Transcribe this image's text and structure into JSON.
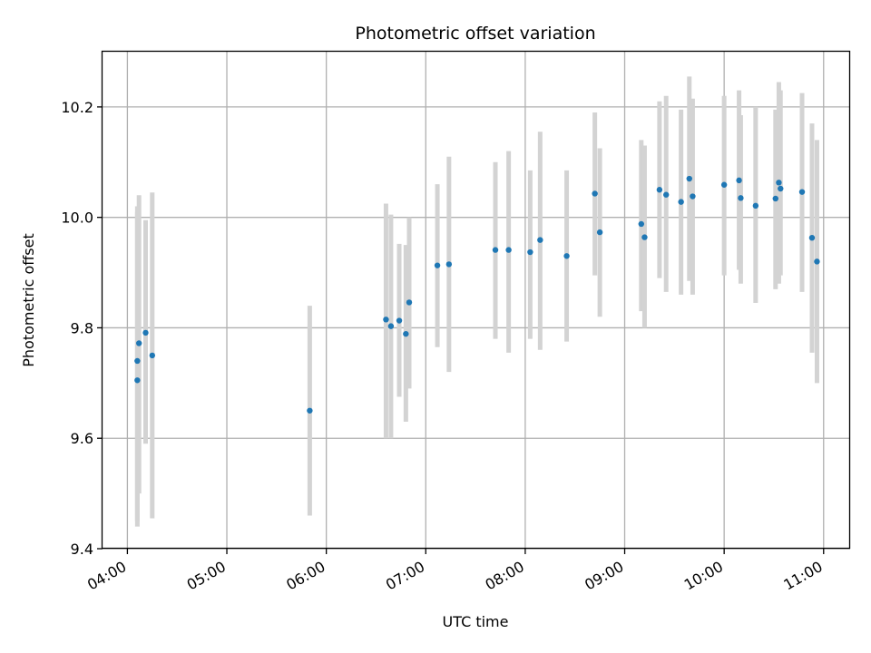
{
  "chart_data": {
    "type": "scatter",
    "title": "Photometric offset variation",
    "xlabel": "UTC time",
    "ylabel": "Photometric offset",
    "grid": true,
    "xlim": [
      "03:45",
      "11:16"
    ],
    "ylim": [
      9.4,
      10.3
    ],
    "xticks": [
      "04:00",
      "05:00",
      "06:00",
      "07:00",
      "08:00",
      "09:00",
      "10:00",
      "11:00"
    ],
    "yticks": [
      9.4,
      9.6,
      9.8,
      10.0,
      10.2
    ],
    "ytick_labels": [
      "9.4",
      "9.6",
      "9.8",
      "10.0",
      "10.2"
    ],
    "colors": {
      "point": "#1f77b4",
      "errorbar": "#d3d3d3",
      "grid": "#b0b0b0"
    },
    "points": [
      {
        "x": "04:06",
        "y": 9.705,
        "err_low": 9.44,
        "err_high": 10.01
      },
      {
        "x": "04:06",
        "y": 9.74,
        "err_low": 9.45,
        "err_high": 10.02
      },
      {
        "x": "04:07",
        "y": 9.772,
        "err_low": 9.5,
        "err_high": 10.04
      },
      {
        "x": "04:11",
        "y": 9.791,
        "err_low": 9.59,
        "err_high": 9.995
      },
      {
        "x": "04:15",
        "y": 9.75,
        "err_low": 9.455,
        "err_high": 10.045
      },
      {
        "x": "05:50",
        "y": 9.65,
        "err_low": 9.46,
        "err_high": 9.84
      },
      {
        "x": "06:36",
        "y": 9.815,
        "err_low": 9.6,
        "err_high": 10.025
      },
      {
        "x": "06:39",
        "y": 9.803,
        "err_low": 9.6,
        "err_high": 10.005
      },
      {
        "x": "06:44",
        "y": 9.813,
        "err_low": 9.675,
        "err_high": 9.952
      },
      {
        "x": "06:48",
        "y": 9.789,
        "err_low": 9.63,
        "err_high": 9.95
      },
      {
        "x": "06:50",
        "y": 9.846,
        "err_low": 9.69,
        "err_high": 10.0
      },
      {
        "x": "07:07",
        "y": 9.913,
        "err_low": 9.765,
        "err_high": 10.06
      },
      {
        "x": "07:14",
        "y": 9.915,
        "err_low": 9.72,
        "err_high": 10.11
      },
      {
        "x": "07:42",
        "y": 9.941,
        "err_low": 9.78,
        "err_high": 10.1
      },
      {
        "x": "07:50",
        "y": 9.941,
        "err_low": 9.755,
        "err_high": 10.12
      },
      {
        "x": "08:03",
        "y": 9.937,
        "err_low": 9.78,
        "err_high": 10.085
      },
      {
        "x": "08:09",
        "y": 9.959,
        "err_low": 9.76,
        "err_high": 10.155
      },
      {
        "x": "08:25",
        "y": 9.93,
        "err_low": 9.775,
        "err_high": 10.085
      },
      {
        "x": "08:42",
        "y": 10.043,
        "err_low": 9.895,
        "err_high": 10.19
      },
      {
        "x": "08:45",
        "y": 9.973,
        "err_low": 9.82,
        "err_high": 10.125
      },
      {
        "x": "09:10",
        "y": 9.988,
        "err_low": 9.83,
        "err_high": 10.14
      },
      {
        "x": "09:12",
        "y": 9.964,
        "err_low": 9.8,
        "err_high": 10.13
      },
      {
        "x": "09:21",
        "y": 10.05,
        "err_low": 9.89,
        "err_high": 10.21
      },
      {
        "x": "09:25",
        "y": 10.041,
        "err_low": 9.865,
        "err_high": 10.22
      },
      {
        "x": "09:34",
        "y": 10.028,
        "err_low": 9.86,
        "err_high": 10.195
      },
      {
        "x": "09:39",
        "y": 10.07,
        "err_low": 9.885,
        "err_high": 10.255
      },
      {
        "x": "09:41",
        "y": 10.038,
        "err_low": 9.86,
        "err_high": 10.215
      },
      {
        "x": "10:00",
        "y": 10.059,
        "err_low": 9.895,
        "err_high": 10.22
      },
      {
        "x": "10:09",
        "y": 10.067,
        "err_low": 9.905,
        "err_high": 10.23
      },
      {
        "x": "10:10",
        "y": 10.035,
        "err_low": 9.88,
        "err_high": 10.185
      },
      {
        "x": "10:19",
        "y": 10.021,
        "err_low": 9.845,
        "err_high": 10.2
      },
      {
        "x": "10:31",
        "y": 10.034,
        "err_low": 9.87,
        "err_high": 10.195
      },
      {
        "x": "10:33",
        "y": 10.063,
        "err_low": 9.88,
        "err_high": 10.245
      },
      {
        "x": "10:34",
        "y": 10.052,
        "err_low": 9.895,
        "err_high": 10.23
      },
      {
        "x": "10:47",
        "y": 10.046,
        "err_low": 9.865,
        "err_high": 10.225
      },
      {
        "x": "10:53",
        "y": 9.963,
        "err_low": 9.755,
        "err_high": 10.17
      },
      {
        "x": "10:56",
        "y": 9.92,
        "err_low": 9.7,
        "err_high": 10.14
      }
    ]
  }
}
